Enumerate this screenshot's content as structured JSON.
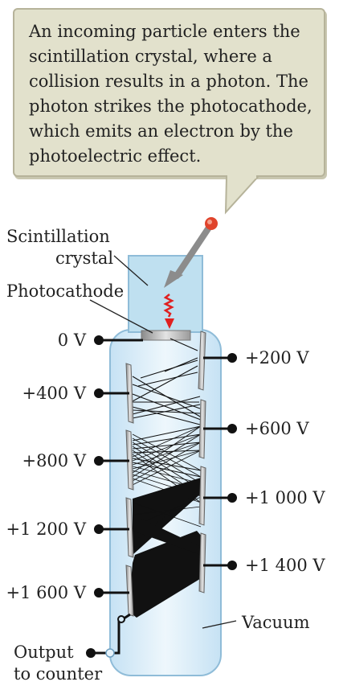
{
  "callout": {
    "text": "An incoming particle enters the scintillation crystal, where a collision results in a photon. The photon strikes the photocathode, which emits an electron by the photoelectric effect."
  },
  "labels": {
    "scintillation_line1": "Scintillation",
    "scintillation_line2": "crystal",
    "photocathode": "Photocathode",
    "vacuum": "Vacuum",
    "output_line1": "Output",
    "output_line2": "to counter"
  },
  "voltages": {
    "left": [
      "0 V",
      "+400 V",
      "+800 V",
      "+1 200 V",
      "+1 600 V"
    ],
    "right": [
      "+200 V",
      "+600 V",
      "+1 000 V",
      "+1 400 V"
    ]
  },
  "colors": {
    "callout_fill": "#e2e1cc",
    "tube_fill": "#d8ecf8",
    "crystal_fill": "#bfe0f0",
    "particle": "#e0442c",
    "photon": "#e02020",
    "electron_lines": "#111111",
    "dynode": "#a8a8a8"
  }
}
